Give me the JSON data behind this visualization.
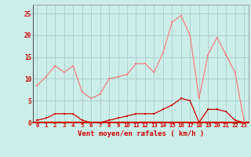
{
  "x": [
    0,
    1,
    2,
    3,
    4,
    5,
    6,
    7,
    8,
    9,
    10,
    11,
    12,
    13,
    14,
    15,
    16,
    17,
    18,
    19,
    20,
    21,
    22,
    23
  ],
  "rafales": [
    8.5,
    10.5,
    13,
    11.5,
    13,
    7,
    5.5,
    6.5,
    10,
    10.5,
    11,
    13.5,
    13.5,
    11.5,
    16,
    23,
    24.5,
    20,
    5.5,
    15.5,
    19.5,
    15.5,
    11.5,
    0.5
  ],
  "moyen": [
    0.5,
    1,
    2,
    2,
    2,
    0.5,
    0,
    0,
    0.5,
    1,
    1.5,
    2,
    2,
    2,
    3,
    4,
    5.5,
    5,
    0,
    3,
    3,
    2.5,
    0.5,
    0
  ],
  "color_rafales": "#f08080",
  "color_moyen": "#cc0000",
  "bg_color": "#cceee8",
  "grid_color": "#aacccc",
  "xlabel": "Vent moyen/en rafales ( km/h )",
  "xlabel_color": "#cc0000",
  "tick_color": "#cc0000",
  "ylim": [
    0,
    27
  ],
  "xlim": [
    -0.5,
    23.5
  ],
  "yticks": [
    0,
    5,
    10,
    15,
    20,
    25
  ],
  "xticks": [
    0,
    1,
    2,
    3,
    4,
    5,
    6,
    7,
    8,
    9,
    10,
    11,
    12,
    13,
    14,
    15,
    16,
    17,
    18,
    19,
    20,
    21,
    22,
    23
  ]
}
